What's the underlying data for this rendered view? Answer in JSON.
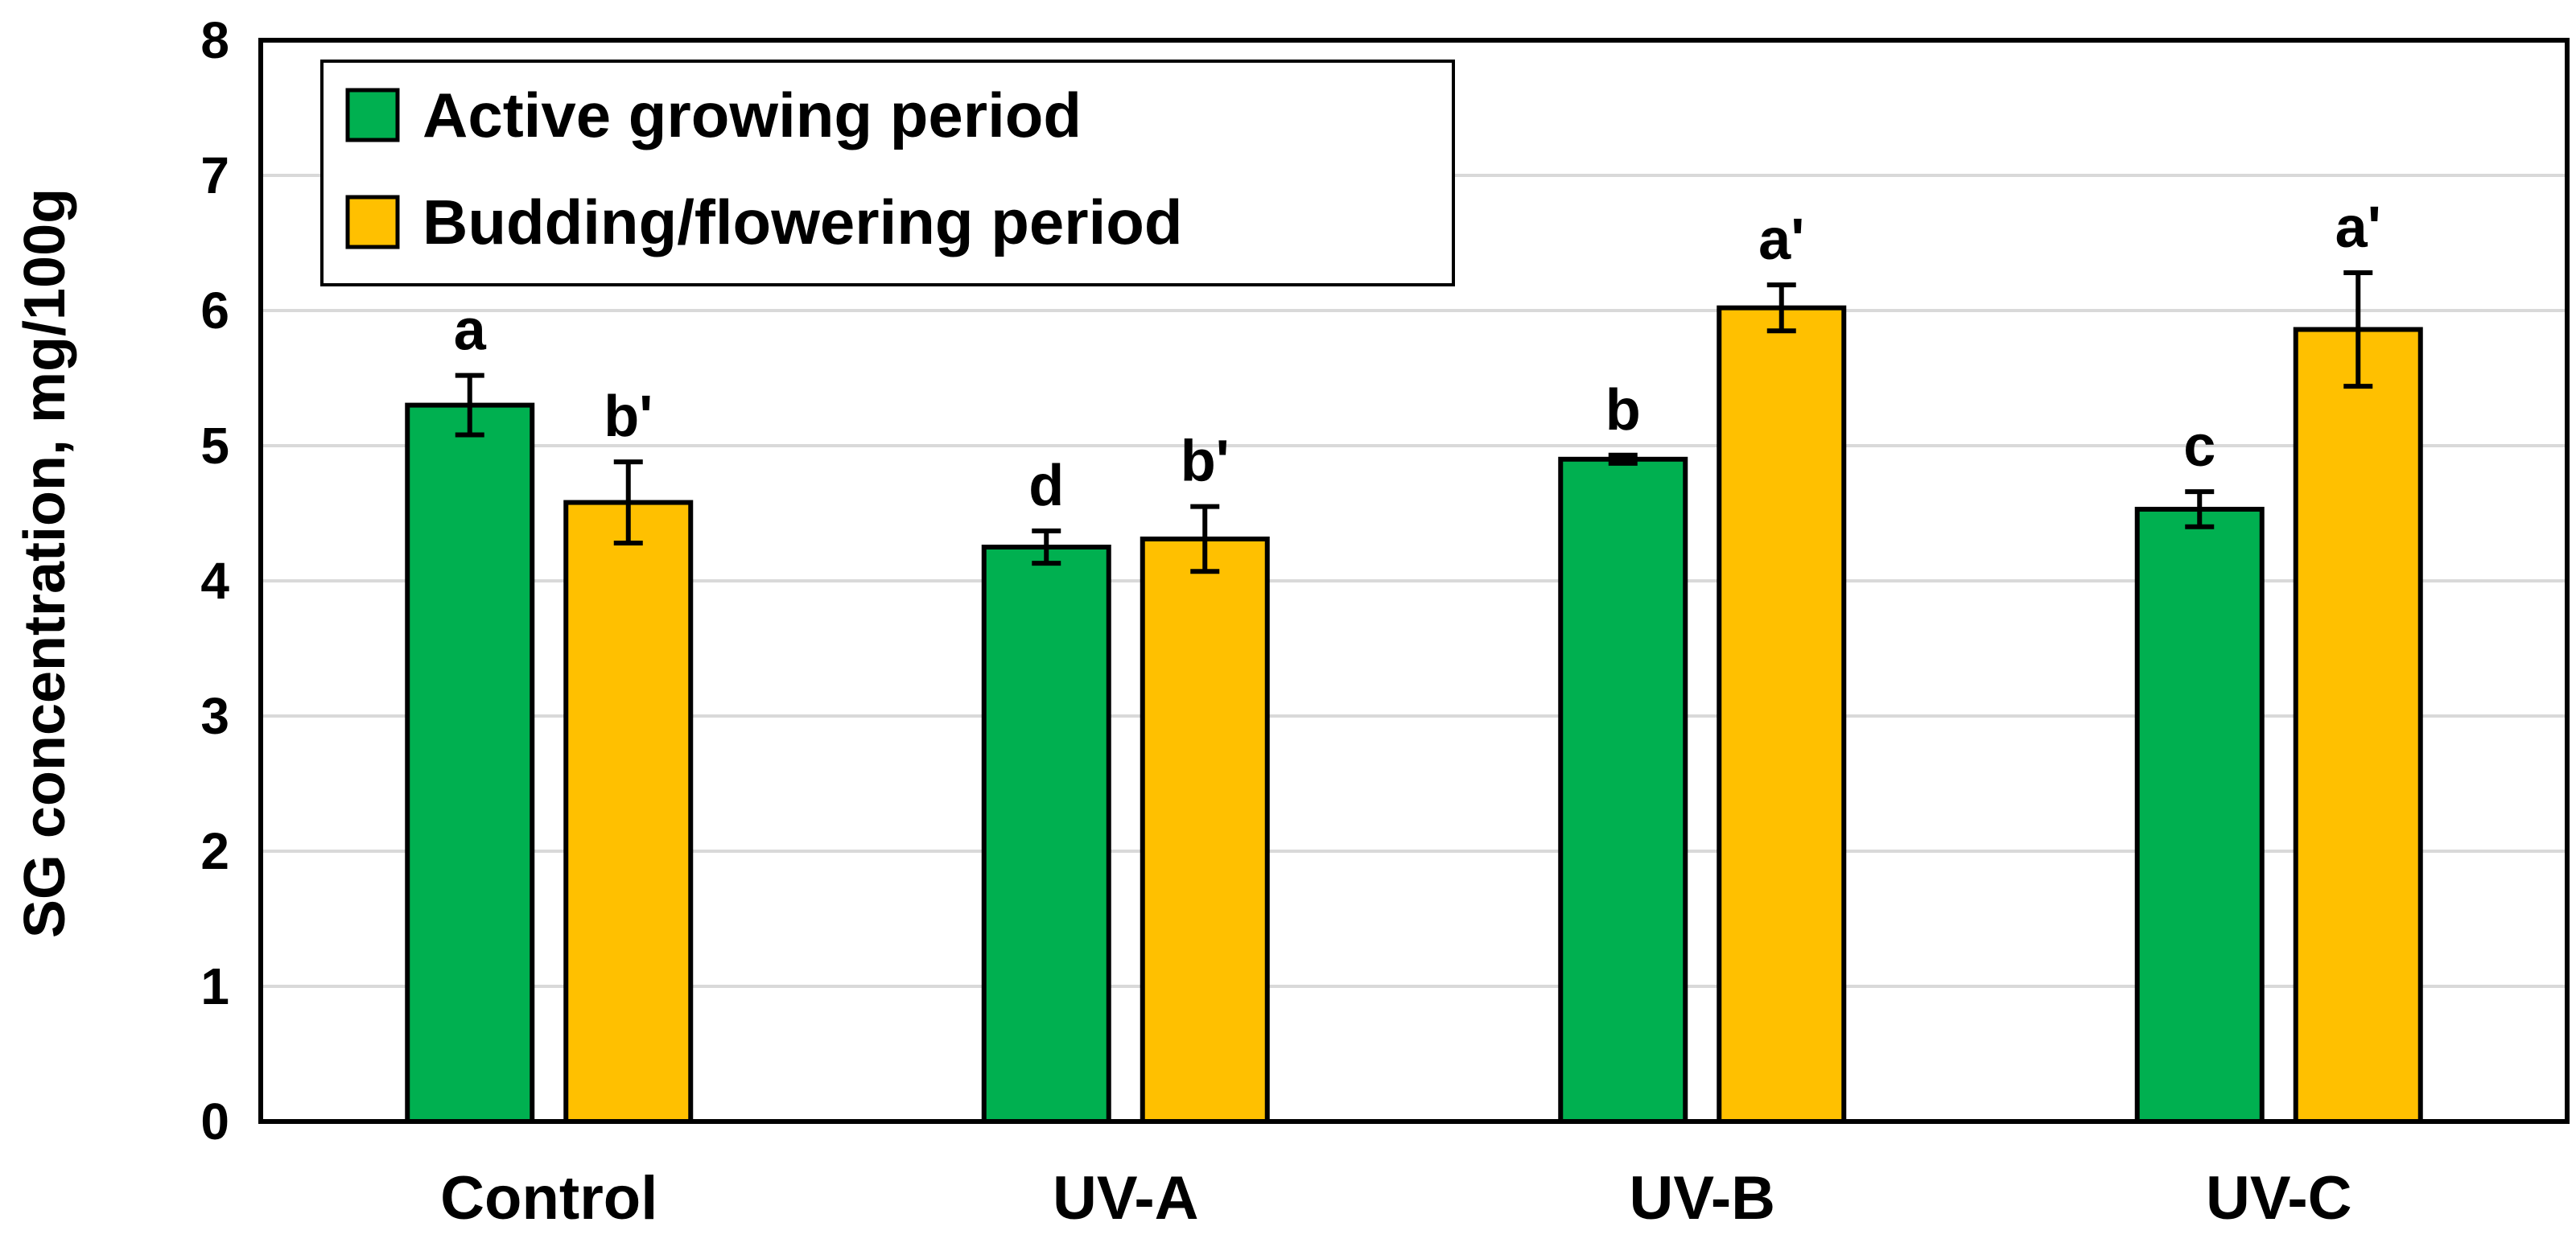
{
  "chart_data": {
    "type": "bar",
    "categories": [
      "Control",
      "UV-A",
      "UV-B",
      "UV-C"
    ],
    "series": [
      {
        "name": "Active growing period",
        "color": "#00b050",
        "values": [
          5.3,
          4.25,
          4.9,
          4.53
        ],
        "errors": [
          0.22,
          0.12,
          0.03,
          0.13
        ],
        "letters": [
          "a",
          "d",
          "b",
          "c"
        ]
      },
      {
        "name": "Budding/flowering period",
        "color": "#ffc000",
        "values": [
          4.58,
          4.31,
          6.02,
          5.86
        ],
        "errors": [
          0.3,
          0.24,
          0.17,
          0.42
        ],
        "letters": [
          "b'",
          "b'",
          "a'",
          "a'"
        ]
      }
    ],
    "title": "",
    "xlabel": "",
    "ylabel": "SG concentration, mg/100g",
    "ylim": [
      0,
      8
    ],
    "yticks": [
      0,
      1,
      2,
      3,
      4,
      5,
      6,
      7,
      8
    ],
    "grid": true,
    "legend_position": "top-left"
  }
}
